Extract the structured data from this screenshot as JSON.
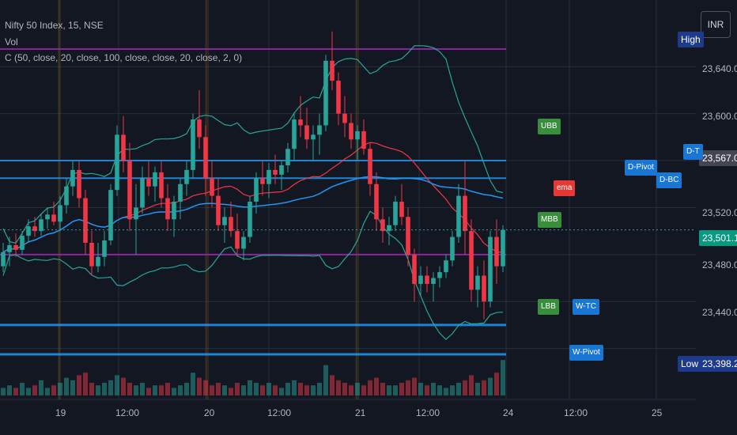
{
  "legend": {
    "symbol": "Nifty 50 Index, 15, NSE",
    "vol": "Vol",
    "indicator": "C (50, close, 20, close, 100, close, close, 20, close, 2, 0)"
  },
  "currency": "INR",
  "price_axis": {
    "ticks": [
      "23,640.00",
      "23,600.00",
      "23,567.00",
      "23,520.00",
      "23,501.10",
      "23,480.00",
      "23,440.00",
      "23,398.20"
    ],
    "high_label": "High",
    "low_label": "Low",
    "high_value": "23,567.00",
    "last_value": "23,501.10",
    "low_value": "23,398.20"
  },
  "time_axis": [
    "19",
    "12:00",
    "20",
    "12:00",
    "21",
    "12:00",
    "24",
    "12:00",
    "25"
  ],
  "markers": [
    "UBB",
    "ema",
    "MBB",
    "D-Pivot",
    "D-BC",
    "D-T",
    "LBB",
    "W-TC",
    "W-Pivot"
  ],
  "colors": {
    "up": "#26a69a",
    "down": "#f23645",
    "bg": "#131722",
    "grid": "#2a2e39",
    "blue": "#2196f3",
    "purple": "#9c27b0",
    "green": "#4caf50"
  },
  "chart_data": {
    "type": "candlestick",
    "y_range": [
      23360,
      23690
    ],
    "candles": [
      [
        23470,
        23490,
        23465,
        23482
      ],
      [
        23482,
        23495,
        23470,
        23488
      ],
      [
        23488,
        23498,
        23478,
        23484
      ],
      [
        23484,
        23500,
        23480,
        23496
      ],
      [
        23496,
        23510,
        23490,
        23504
      ],
      [
        23504,
        23512,
        23495,
        23500
      ],
      [
        23500,
        23515,
        23496,
        23510
      ],
      [
        23510,
        23520,
        23502,
        23514
      ],
      [
        23514,
        23525,
        23505,
        23508
      ],
      [
        23508,
        23530,
        23500,
        23522
      ],
      [
        23522,
        23545,
        23515,
        23538
      ],
      [
        23538,
        23560,
        23530,
        23552
      ],
      [
        23552,
        23560,
        23520,
        23528
      ],
      [
        23528,
        23535,
        23480,
        23490
      ],
      [
        23490,
        23500,
        23462,
        23470
      ],
      [
        23470,
        23490,
        23465,
        23478
      ],
      [
        23478,
        23500,
        23470,
        23492
      ],
      [
        23492,
        23540,
        23488,
        23535
      ],
      [
        23535,
        23590,
        23530,
        23582
      ],
      [
        23582,
        23598,
        23550,
        23560
      ],
      [
        23560,
        23575,
        23500,
        23510
      ],
      [
        23510,
        23540,
        23480,
        23520
      ],
      [
        23520,
        23555,
        23515,
        23545
      ],
      [
        23545,
        23560,
        23530,
        23538
      ],
      [
        23538,
        23555,
        23525,
        23550
      ],
      [
        23550,
        23560,
        23520,
        23528
      ],
      [
        23528,
        23540,
        23500,
        23510
      ],
      [
        23510,
        23530,
        23495,
        23525
      ],
      [
        23525,
        23545,
        23510,
        23540
      ],
      [
        23540,
        23560,
        23530,
        23552
      ],
      [
        23552,
        23600,
        23545,
        23595
      ],
      [
        23595,
        23620,
        23570,
        23580
      ],
      [
        23580,
        23590,
        23530,
        23545
      ],
      [
        23545,
        23560,
        23520,
        23530
      ],
      [
        23530,
        23545,
        23500,
        23505
      ],
      [
        23505,
        23520,
        23490,
        23512
      ],
      [
        23512,
        23525,
        23495,
        23500
      ],
      [
        23500,
        23515,
        23478,
        23485
      ],
      [
        23485,
        23500,
        23475,
        23495
      ],
      [
        23495,
        23530,
        23490,
        23525
      ],
      [
        23525,
        23550,
        23515,
        23545
      ],
      [
        23545,
        23560,
        23530,
        23540
      ],
      [
        23540,
        23558,
        23528,
        23552
      ],
      [
        23552,
        23565,
        23540,
        23548
      ],
      [
        23548,
        23560,
        23535,
        23556
      ],
      [
        23556,
        23575,
        23550,
        23570
      ],
      [
        23570,
        23600,
        23560,
        23595
      ],
      [
        23595,
        23615,
        23580,
        23590
      ],
      [
        23590,
        23605,
        23570,
        23578
      ],
      [
        23578,
        23590,
        23560,
        23582
      ],
      [
        23582,
        23600,
        23565,
        23590
      ],
      [
        23590,
        23650,
        23585,
        23645
      ],
      [
        23645,
        23670,
        23620,
        23628
      ],
      [
        23628,
        23635,
        23590,
        23600
      ],
      [
        23600,
        23615,
        23580,
        23592
      ],
      [
        23592,
        23600,
        23570,
        23578
      ],
      [
        23578,
        23590,
        23560,
        23585
      ],
      [
        23585,
        23595,
        23565,
        23570
      ],
      [
        23570,
        23575,
        23530,
        23540
      ],
      [
        23540,
        23550,
        23500,
        23510
      ],
      [
        23510,
        23520,
        23490,
        23500
      ],
      [
        23500,
        23512,
        23488,
        23505
      ],
      [
        23505,
        23530,
        23500,
        23525
      ],
      [
        23525,
        23540,
        23505,
        23512
      ],
      [
        23512,
        23520,
        23470,
        23480
      ],
      [
        23480,
        23485,
        23440,
        23455
      ],
      [
        23455,
        23470,
        23445,
        23462
      ],
      [
        23462,
        23470,
        23448,
        23455
      ],
      [
        23455,
        23465,
        23440,
        23460
      ],
      [
        23460,
        23470,
        23452,
        23465
      ],
      [
        23465,
        23480,
        23460,
        23475
      ],
      [
        23475,
        23500,
        23470,
        23495
      ],
      [
        23495,
        23540,
        23490,
        23530
      ],
      [
        23530,
        23560,
        23480,
        23500
      ],
      [
        23500,
        23510,
        23440,
        23450
      ],
      [
        23450,
        23470,
        23435,
        23462
      ],
      [
        23462,
        23475,
        23425,
        23440
      ],
      [
        23440,
        23500,
        23435,
        23495
      ],
      [
        23495,
        23510,
        23455,
        23470
      ],
      [
        23470,
        23505,
        23465,
        23501
      ]
    ],
    "volumes": [
      3,
      4,
      3,
      5,
      3,
      4,
      6,
      3,
      4,
      5,
      7,
      6,
      8,
      9,
      5,
      4,
      5,
      6,
      8,
      7,
      5,
      4,
      5,
      3,
      4,
      4,
      5,
      3,
      4,
      5,
      9,
      7,
      6,
      4,
      5,
      4,
      3,
      5,
      4,
      6,
      5,
      4,
      5,
      4,
      3,
      5,
      6,
      5,
      4,
      4,
      5,
      12,
      8,
      6,
      5,
      4,
      5,
      4,
      6,
      7,
      5,
      4,
      4,
      5,
      6,
      7,
      5,
      4,
      5,
      4,
      3,
      4,
      5,
      6,
      8,
      5,
      6,
      7,
      9,
      14
    ],
    "levels": [
      {
        "name": "prev-high",
        "value": 23655
      },
      {
        "name": "prev-low",
        "value": 23480
      },
      {
        "name": "cpr-1",
        "value": 23560
      },
      {
        "name": "cpr-2",
        "value": 23545
      },
      {
        "name": "support-1",
        "value": 23420
      },
      {
        "name": "support-2",
        "value": 23395
      }
    ]
  }
}
